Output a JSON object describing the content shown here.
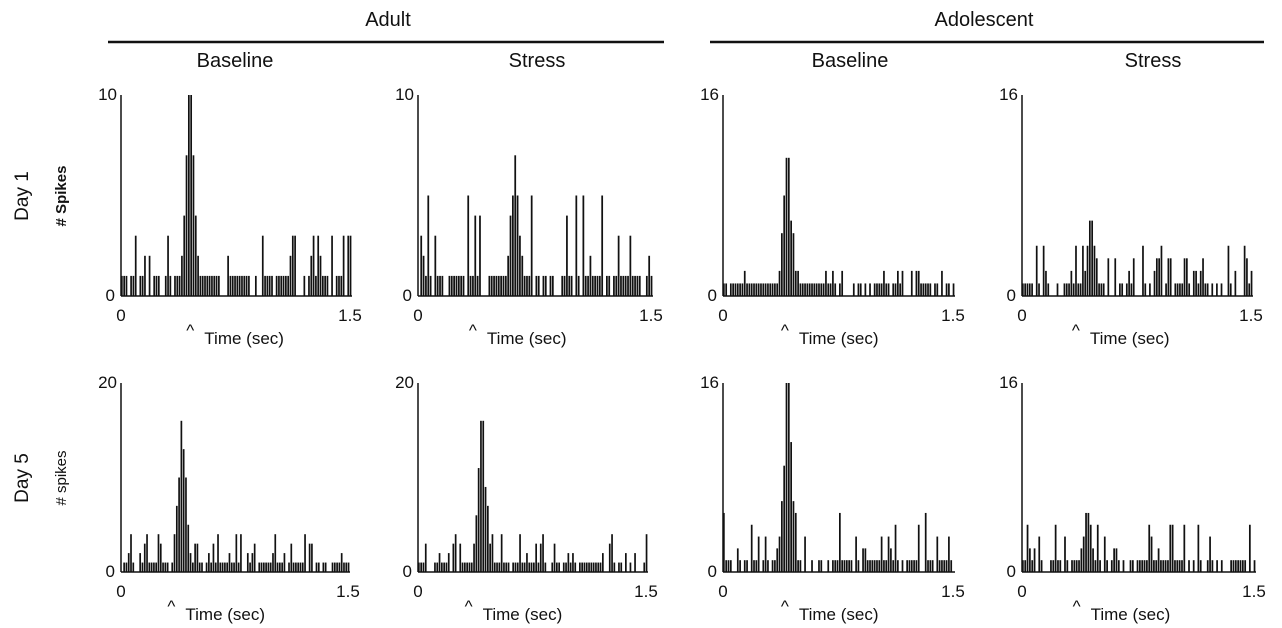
{
  "headers": {
    "groups": [
      "Adult",
      "Adolescent"
    ],
    "columns": [
      "Baseline",
      "Stress",
      "Baseline",
      "Stress"
    ],
    "rows": [
      "Day 1",
      "Day 5"
    ],
    "ylabels": [
      "# Spikes",
      "# spikes"
    ]
  },
  "chart_data": [
    {
      "type": "bar",
      "group": "Adult",
      "condition": "Baseline",
      "day": "Day 1",
      "xlabel": "Time (sec)",
      "ylabel": "# Spikes",
      "marker": "^",
      "marker_x": 0.45,
      "xlim": [
        0,
        1.5
      ],
      "ylim": [
        0,
        10
      ],
      "xticks": [
        "0",
        "1.5"
      ],
      "yticks": [
        "0",
        "10"
      ],
      "bins": 100,
      "peak_x": 0.45,
      "peak_value": 10,
      "bg_max": 3
    },
    {
      "type": "bar",
      "group": "Adult",
      "condition": "Stress",
      "day": "Day 1",
      "xlabel": "Time (sec)",
      "ylabel": "",
      "marker": "^",
      "marker_x": 0.35,
      "xlim": [
        0,
        1.5
      ],
      "ylim": [
        0,
        10
      ],
      "xticks": [
        "0",
        "1.5"
      ],
      "yticks": [
        "0",
        "10"
      ],
      "bins": 100,
      "peak_x": 0.62,
      "peak_value": 7,
      "bg_max": 5
    },
    {
      "type": "bar",
      "group": "Adolescent",
      "condition": "Baseline",
      "day": "Day 1",
      "xlabel": "Time (sec)",
      "ylabel": "",
      "marker": "^",
      "marker_x": 0.4,
      "xlim": [
        0,
        1.5
      ],
      "ylim": [
        0,
        16
      ],
      "xticks": [
        "0",
        "1.5"
      ],
      "yticks": [
        "0",
        "16"
      ],
      "bins": 100,
      "peak_x": 0.42,
      "peak_value": 11,
      "bg_max": 2
    },
    {
      "type": "bar",
      "group": "Adolescent",
      "condition": "Stress",
      "day": "Day 1",
      "xlabel": "Time (sec)",
      "ylabel": "",
      "marker": "^",
      "marker_x": 0.35,
      "xlim": [
        0,
        1.5
      ],
      "ylim": [
        0,
        16
      ],
      "xticks": [
        "0",
        "1.5"
      ],
      "yticks": [
        "0",
        "16"
      ],
      "bins": 100,
      "peak_x": 0.45,
      "peak_value": 6,
      "bg_max": 4
    },
    {
      "type": "bar",
      "group": "Adult",
      "condition": "Baseline",
      "day": "Day 5",
      "xlabel": "Time (sec)",
      "ylabel": "# spikes",
      "marker": "^",
      "marker_x": 0.33,
      "xlim": [
        0,
        1.5
      ],
      "ylim": [
        0,
        20
      ],
      "xticks": [
        "0",
        "1.5"
      ],
      "yticks": [
        "0",
        "20"
      ],
      "bins": 100,
      "peak_x": 0.4,
      "peak_value": 16,
      "bg_max": 4
    },
    {
      "type": "bar",
      "group": "Adult",
      "condition": "Stress",
      "day": "Day 5",
      "xlabel": "Time (sec)",
      "ylabel": "",
      "marker": "^",
      "marker_x": 0.33,
      "xlim": [
        0,
        1.5
      ],
      "ylim": [
        0,
        20
      ],
      "xticks": [
        "0",
        "1.5"
      ],
      "yticks": [
        "0",
        "20"
      ],
      "bins": 100,
      "peak_x": 0.42,
      "peak_value": 16,
      "bg_max": 4
    },
    {
      "type": "bar",
      "group": "Adolescent",
      "condition": "Baseline",
      "day": "Day 5",
      "xlabel": "Time (sec)",
      "ylabel": "",
      "marker": "^",
      "marker_x": 0.4,
      "xlim": [
        0,
        1.5
      ],
      "ylim": [
        0,
        16
      ],
      "xticks": [
        "0",
        "1.5"
      ],
      "yticks": [
        "0",
        "16"
      ],
      "bins": 100,
      "peak_x": 0.42,
      "peak_value": 16,
      "bg_max": 5
    },
    {
      "type": "bar",
      "group": "Adolescent",
      "condition": "Stress",
      "day": "Day 5",
      "xlabel": "Time (sec)",
      "ylabel": "",
      "marker": "^",
      "marker_x": 0.35,
      "xlim": [
        0,
        1.5
      ],
      "ylim": [
        0,
        16
      ],
      "xticks": [
        "0",
        "1.5"
      ],
      "yticks": [
        "0",
        "16"
      ],
      "bins": 100,
      "peak_x": 0.42,
      "peak_value": 5,
      "bg_max": 4
    }
  ]
}
